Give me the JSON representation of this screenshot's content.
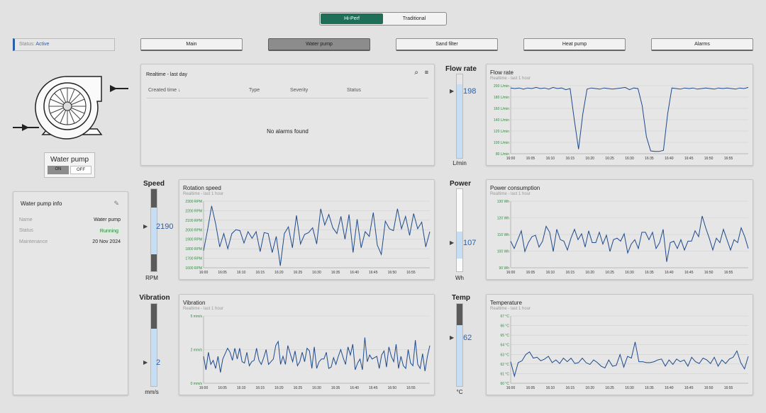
{
  "mode_toggle": {
    "options": [
      "Hi-Perf",
      "Traditional"
    ],
    "selected": "Hi-Perf"
  },
  "status": {
    "prefix": "Status:",
    "value": "Active"
  },
  "nav": [
    "Main",
    "Water pump",
    "Sand filter",
    "Heat pump",
    "Alarms"
  ],
  "nav_active": "Water pump",
  "pump_widget": {
    "title": "Water pump",
    "on_label": "ON",
    "off_label": "OFF"
  },
  "pump_info": {
    "title": "Water pump info",
    "rows": [
      {
        "label": "Name",
        "value": "Water pump"
      },
      {
        "label": "Status",
        "value": "Running"
      },
      {
        "label": "Maintenance",
        "value": "20 Nov 2024"
      }
    ]
  },
  "alarms_panel": {
    "title": "Realtime - last day",
    "columns": [
      "Created time",
      "Type",
      "Severity",
      "Status"
    ],
    "empty_text": "No alarms found"
  },
  "gauges": {
    "flow": {
      "label": "Flow rate",
      "value": "198",
      "unit": "L/min",
      "fill": 0.88
    },
    "speed": {
      "label": "Speed",
      "value": "2190",
      "unit": "RPM",
      "fill": 0.62
    },
    "power": {
      "label": "Power",
      "value": "107",
      "unit": "Wh",
      "fill": 0.62
    },
    "vibration": {
      "label": "Vibration",
      "value": "2",
      "unit": "mm/s",
      "fill": 0.65
    },
    "temp": {
      "label": "Temp",
      "value": "62",
      "unit": "°C",
      "fill": 0.7
    }
  },
  "colors": {
    "accent": "#1f6e57",
    "line": "#1e4a8c",
    "tick": "#2f8a3f"
  },
  "chart_data": [
    {
      "type": "line",
      "title": "Flow rate",
      "subtitle": "Realtime - last 1 hour",
      "yticks": [
        "200 L/min",
        "180 L/min",
        "160 L/min",
        "140 L/min",
        "120 L/min",
        "100 L/min",
        "80 L/min"
      ],
      "xticks": [
        "16:00",
        "16:05",
        "16:10",
        "16:15",
        "16:20",
        "16:25",
        "16:30",
        "16:35",
        "16:40",
        "16:45",
        "16:50",
        "16:55"
      ],
      "ylim": [
        80,
        200
      ],
      "values": [
        196,
        195,
        196,
        194,
        196,
        195,
        197,
        195,
        196,
        194,
        197,
        195,
        196,
        193,
        195,
        140,
        88,
        150,
        194,
        196,
        195,
        194,
        196,
        195,
        194,
        195,
        196,
        197,
        193,
        196,
        195,
        165,
        110,
        85,
        84,
        84,
        86,
        150,
        196,
        195,
        194,
        196,
        195,
        196,
        194,
        195,
        196,
        195,
        194,
        196,
        195,
        196,
        195,
        194,
        196,
        195,
        197
      ]
    },
    {
      "type": "line",
      "title": "Rotation speed",
      "subtitle": "Realtime - last 1 hour",
      "yticks": [
        "2300 RPM",
        "2200 RPM",
        "2100 RPM",
        "2000 RPM",
        "1900 RPM",
        "1800 RPM",
        "1700 RPM",
        "1600 RPM"
      ],
      "xticks": [
        "16:00",
        "16:05",
        "16:10",
        "16:15",
        "16:20",
        "16:25",
        "16:30",
        "16:35",
        "16:40",
        "16:45",
        "16:50",
        "16:55"
      ],
      "ylim": [
        1600,
        2300
      ],
      "values": [
        1780,
        2000,
        2250,
        2060,
        1820,
        1960,
        1800,
        1960,
        2000,
        1990,
        1860,
        1980,
        1910,
        1980,
        1770,
        1970,
        1960,
        1760,
        1930,
        1620,
        1960,
        2030,
        1810,
        2150,
        1850,
        1950,
        1970,
        2020,
        1850,
        2220,
        2050,
        2160,
        2020,
        1960,
        2140,
        1900,
        2160,
        1760,
        2110,
        1810,
        1980,
        1930,
        2180,
        1840,
        1740,
        2090,
        2010,
        1990,
        2220,
        2010,
        2140,
        1940,
        2170,
        2010,
        2080,
        1820,
        1980
      ]
    },
    {
      "type": "line",
      "title": "Power consumption",
      "subtitle": "Realtime - last 1 hour",
      "yticks": [
        "130 Wh",
        "120 Wh",
        "110 Wh",
        "100 Wh",
        "90 Wh"
      ],
      "xticks": [
        "16:00",
        "16:05",
        "16:10",
        "16:15",
        "16:20",
        "16:25",
        "16:30",
        "16:35",
        "16:40",
        "16:45",
        "16:50",
        "16:55"
      ],
      "ylim": [
        85,
        130
      ],
      "values": [
        103,
        98,
        104,
        110,
        96,
        102,
        106,
        107,
        99,
        103,
        113,
        109,
        96,
        111,
        104,
        103,
        97,
        105,
        111,
        104,
        108,
        99,
        110,
        102,
        102,
        109,
        101,
        107,
        96,
        104,
        105,
        103,
        108,
        95,
        101,
        104,
        98,
        109,
        109,
        104,
        109,
        98,
        102,
        111,
        89,
        102,
        103,
        98,
        104,
        97,
        103,
        103,
        110,
        106,
        120,
        112,
        105,
        97,
        105,
        102,
        111,
        104,
        97,
        104,
        102,
        112,
        106,
        98
      ]
    },
    {
      "type": "line",
      "title": "Vibration",
      "subtitle": "Realtime - last 1 hour",
      "yticks": [
        "5 mm/s",
        "2 mm/s",
        "0 mm/s"
      ],
      "xticks": [
        "16:00",
        "16:05",
        "16:10",
        "16:15",
        "16:20",
        "16:25",
        "16:30",
        "16:35",
        "16:40",
        "16:45",
        "16:50",
        "16:55"
      ],
      "ylim": [
        0,
        5
      ],
      "values": [
        2.0,
        1.0,
        2.3,
        1.4,
        1.7,
        1.1,
        2.0,
        0.8,
        1.8,
        2.2,
        2.6,
        2.3,
        1.7,
        2.6,
        1.8,
        2.6,
        1.6,
        1.5,
        2.3,
        1.3,
        1.6,
        1.7,
        2.6,
        1.7,
        1.4,
        1.9,
        2.5,
        1.4,
        1.6,
        1.8,
        2.8,
        3.1,
        1.4,
        2.0,
        1.4,
        2.8,
        2.2,
        1.6,
        2.4,
        1.3,
        1.6,
        2.3,
        1.6,
        2.6,
        2.4,
        1.1,
        2.7,
        1.1,
        1.6,
        1.8,
        1.8,
        2.3,
        1.1,
        1.2,
        1.9,
        1.4,
        2.0,
        2.5,
        1.9,
        1.4,
        2.7,
        2.1,
        2.9,
        1.0,
        1.5,
        1.8,
        1.0,
        3.4,
        1.6,
        2.1,
        1.8,
        1.9,
        2.0,
        1.1,
        2.1,
        2.4,
        1.2,
        2.7,
        2.0,
        1.6,
        2.9,
        1.1,
        2.0,
        1.3,
        1.1,
        2.5,
        1.5,
        1.3,
        3.2,
        1.4,
        1.1,
        2.2,
        0.9,
        2.0,
        2.8
      ]
    },
    {
      "type": "line",
      "title": "Temperature",
      "subtitle": "Realtime - last 1 hour",
      "yticks": [
        "67 °C",
        "66 °C",
        "65 °C",
        "64 °C",
        "63 °C",
        "62 °C",
        "61 °C",
        "60 °C"
      ],
      "xticks": [
        "16:00",
        "16:05",
        "16:10",
        "16:15",
        "16:20",
        "16:25",
        "16:30",
        "16:35",
        "16:40",
        "16:45",
        "16:50",
        "16:55"
      ],
      "ylim": [
        60,
        67.5
      ],
      "values": [
        62.4,
        60.8,
        62.3,
        62.5,
        63.2,
        63.5,
        62.8,
        62.9,
        62.5,
        62.7,
        63.0,
        62.3,
        62.6,
        62.2,
        62.8,
        62.4,
        62.8,
        62.2,
        62.3,
        62.8,
        62.3,
        62.1,
        62.6,
        62.3,
        61.9,
        61.7,
        62.6,
        61.9,
        62.0,
        63.2,
        61.8,
        63.0,
        62.8,
        64.6,
        62.4,
        62.4,
        62.3,
        62.3,
        62.4,
        62.6,
        62.7,
        61.9,
        62.6,
        62.1,
        62.7,
        62.4,
        62.6,
        61.9,
        62.9,
        62.4,
        62.2,
        62.8,
        62.6,
        62.2,
        62.9,
        61.9,
        62.6,
        62.2,
        62.7,
        62.9,
        63.6,
        62.3,
        61.6,
        63.0
      ]
    }
  ]
}
